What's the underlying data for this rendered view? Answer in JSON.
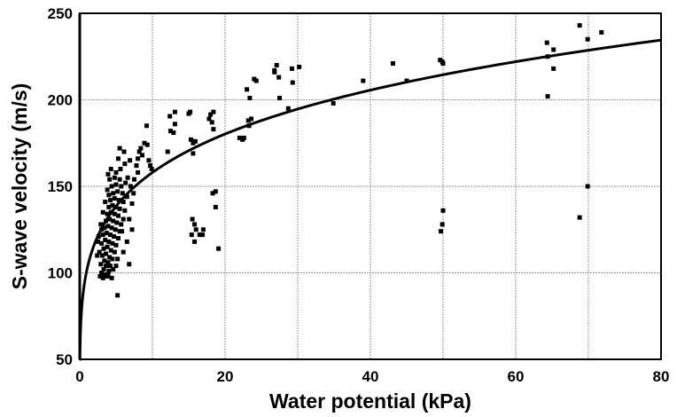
{
  "chart_data": {
    "type": "scatter",
    "title": "",
    "xlabel": "Water potential (kPa)",
    "ylabel": "S-wave velocity (m/s)",
    "xlim": [
      0,
      80
    ],
    "ylim": [
      50,
      250
    ],
    "xticks": [
      0,
      20,
      40,
      60,
      80
    ],
    "yticks": [
      50,
      100,
      150,
      200,
      250
    ],
    "xtick_labels": [
      "0",
      "20",
      "40",
      "60",
      "80"
    ],
    "ytick_labels": [
      "50",
      "100",
      "150",
      "200",
      "250"
    ],
    "grid": true,
    "grid_x_step": 10,
    "grid_y_step": 50,
    "fit_curve": {
      "form": "power",
      "a": 102,
      "b": 0.19
    },
    "colors": {
      "points": "#000000",
      "curve": "#000000",
      "grid": "#9a9a9a"
    },
    "points": [
      [
        2.8,
        98
      ],
      [
        3.0,
        100
      ],
      [
        3.2,
        97
      ],
      [
        3.5,
        99
      ],
      [
        3.8,
        98
      ],
      [
        3.3,
        102
      ],
      [
        3.6,
        104
      ],
      [
        4.0,
        101
      ],
      [
        2.9,
        105
      ],
      [
        3.4,
        107
      ],
      [
        3.9,
        106
      ],
      [
        4.2,
        104
      ],
      [
        3.1,
        110
      ],
      [
        3.6,
        111
      ],
      [
        4.1,
        109
      ],
      [
        4.5,
        108
      ],
      [
        2.7,
        112
      ],
      [
        3.3,
        114
      ],
      [
        3.8,
        115
      ],
      [
        4.3,
        113
      ],
      [
        4.8,
        112
      ],
      [
        3.0,
        117
      ],
      [
        3.5,
        119
      ],
      [
        4.0,
        118
      ],
      [
        4.5,
        117
      ],
      [
        5.0,
        116
      ],
      [
        2.6,
        121
      ],
      [
        3.2,
        122
      ],
      [
        3.7,
        123
      ],
      [
        4.2,
        122
      ],
      [
        4.7,
        121
      ],
      [
        5.3,
        120
      ],
      [
        3.4,
        126
      ],
      [
        3.9,
        127
      ],
      [
        4.4,
        126
      ],
      [
        4.9,
        125
      ],
      [
        5.5,
        124
      ],
      [
        3.6,
        130
      ],
      [
        4.1,
        131
      ],
      [
        4.6,
        130
      ],
      [
        5.1,
        129
      ],
      [
        5.7,
        128
      ],
      [
        3.8,
        134
      ],
      [
        4.3,
        135
      ],
      [
        4.8,
        134
      ],
      [
        5.3,
        133
      ],
      [
        6.0,
        131
      ],
      [
        4.0,
        138
      ],
      [
        4.5,
        139
      ],
      [
        5.0,
        138
      ],
      [
        5.5,
        137
      ],
      [
        6.2,
        136
      ],
      [
        3.5,
        141
      ],
      [
        4.2,
        142
      ],
      [
        4.8,
        143
      ],
      [
        5.4,
        142
      ],
      [
        6.0,
        141
      ],
      [
        4.6,
        146
      ],
      [
        5.2,
        147
      ],
      [
        5.9,
        146
      ],
      [
        3.8,
        148
      ],
      [
        4.4,
        150
      ],
      [
        5.0,
        151
      ],
      [
        5.7,
        150
      ],
      [
        6.3,
        152
      ],
      [
        4.1,
        154
      ],
      [
        4.8,
        155
      ],
      [
        5.5,
        154
      ],
      [
        3.2,
        135
      ],
      [
        2.9,
        128
      ],
      [
        2.5,
        118
      ],
      [
        2.4,
        110
      ],
      [
        3.0,
        125
      ],
      [
        4.0,
        145
      ],
      [
        5.8,
        124
      ],
      [
        6.5,
        118
      ],
      [
        6.8,
        131
      ],
      [
        7.2,
        140
      ],
      [
        6.0,
        112
      ],
      [
        5.2,
        108
      ],
      [
        4.6,
        102
      ],
      [
        3.9,
        99
      ],
      [
        4.4,
        97
      ],
      [
        3.4,
        98
      ],
      [
        5.0,
        104
      ],
      [
        7.0,
        150
      ],
      [
        6.6,
        155
      ],
      [
        5.6,
        160
      ],
      [
        6.2,
        163
      ],
      [
        4.3,
        160
      ],
      [
        3.9,
        157
      ],
      [
        5.0,
        158
      ],
      [
        7.5,
        154
      ],
      [
        8.0,
        158
      ],
      [
        7.8,
        162
      ],
      [
        6.5,
        144
      ],
      [
        7.4,
        146
      ],
      [
        5.3,
        166
      ],
      [
        6.1,
        170
      ],
      [
        5.5,
        172
      ],
      [
        8.2,
        170
      ],
      [
        8.6,
        168
      ],
      [
        8.9,
        175
      ],
      [
        9.3,
        174
      ],
      [
        9.5,
        165
      ],
      [
        9.7,
        162
      ],
      [
        9.9,
        160
      ],
      [
        8.0,
        166
      ],
      [
        9.2,
        185
      ],
      [
        8.4,
        172
      ],
      [
        6.9,
        165
      ],
      [
        5.2,
        87
      ],
      [
        7.2,
        125
      ],
      [
        6.8,
        105
      ],
      [
        13.1,
        193
      ],
      [
        12.4,
        190.5
      ],
      [
        13.1,
        186
      ],
      [
        12.5,
        182
      ],
      [
        12.9,
        181
      ],
      [
        12.1,
        170
      ],
      [
        15.0,
        192
      ],
      [
        15.2,
        193
      ],
      [
        15.3,
        177
      ],
      [
        15.6,
        175
      ],
      [
        15.9,
        176
      ],
      [
        15.6,
        169
      ],
      [
        18.0,
        191.5
      ],
      [
        18.4,
        193
      ],
      [
        18.2,
        187
      ],
      [
        17.8,
        189
      ],
      [
        18.4,
        183
      ],
      [
        18.3,
        146
      ],
      [
        18.7,
        147
      ],
      [
        18.7,
        138
      ],
      [
        15.5,
        131
      ],
      [
        15.8,
        128
      ],
      [
        16.0,
        125
      ],
      [
        17.0,
        125
      ],
      [
        16.5,
        122
      ],
      [
        15.4,
        122
      ],
      [
        16.9,
        122
      ],
      [
        15.8,
        118
      ],
      [
        19.1,
        114
      ],
      [
        22.0,
        178
      ],
      [
        22.4,
        177
      ],
      [
        22.6,
        178
      ],
      [
        23.2,
        188
      ],
      [
        23.6,
        189
      ],
      [
        23.3,
        185
      ],
      [
        23.0,
        206
      ],
      [
        23.4,
        201
      ],
      [
        24.0,
        212
      ],
      [
        24.3,
        211
      ],
      [
        26.8,
        216
      ],
      [
        26.8,
        217
      ],
      [
        27.1,
        220
      ],
      [
        27.4,
        213
      ],
      [
        27.5,
        201
      ],
      [
        28.7,
        195
      ],
      [
        29.2,
        218
      ],
      [
        29.3,
        210
      ],
      [
        30.2,
        219
      ],
      [
        34.9,
        198
      ],
      [
        39.0,
        211
      ],
      [
        43.1,
        221
      ],
      [
        45.0,
        211
      ],
      [
        49.6,
        223
      ],
      [
        49.9,
        222
      ],
      [
        50.0,
        221
      ],
      [
        50.0,
        136
      ],
      [
        49.9,
        128
      ],
      [
        49.7,
        124
      ],
      [
        64.3,
        233
      ],
      [
        65.2,
        229
      ],
      [
        64.4,
        225
      ],
      [
        65.2,
        218
      ],
      [
        64.4,
        202
      ],
      [
        68.8,
        243
      ],
      [
        71.8,
        239
      ],
      [
        69.9,
        235
      ],
      [
        69.9,
        150
      ],
      [
        68.8,
        132
      ]
    ]
  }
}
